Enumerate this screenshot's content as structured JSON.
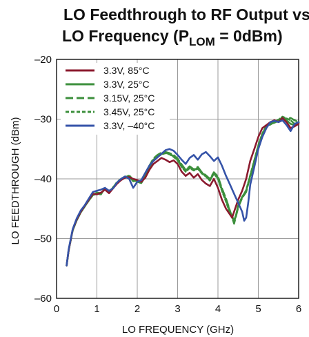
{
  "chart_data": {
    "type": "line",
    "title_line1": "LO Feedthrough to RF Output vs",
    "title_line2_prefix": "LO Frequency (P",
    "title_line2_sub": "LOM",
    "title_line2_suffix": " = 0dBm)",
    "xlabel": "LO FREQUENCY (GHz)",
    "ylabel": "LO FEEDTHROUGH (dBm)",
    "xlim": [
      0,
      6
    ],
    "ylim": [
      -60,
      -20
    ],
    "x_ticks": [
      "0",
      "1",
      "2",
      "3",
      "4",
      "5",
      "6"
    ],
    "y_ticks": [
      "–20",
      "–30",
      "–40",
      "–50",
      "–60"
    ],
    "x_tick_values": [
      0,
      1,
      2,
      3,
      4,
      5,
      6
    ],
    "y_tick_values": [
      -20,
      -30,
      -40,
      -50,
      -60
    ],
    "grid": true,
    "legend_position": "top-left",
    "series": [
      {
        "name": "3.3V, 85°C",
        "color": "#8b1a2e",
        "dash": "solid",
        "points": [
          [
            0.25,
            -54.5
          ],
          [
            0.3,
            -52
          ],
          [
            0.4,
            -48.5
          ],
          [
            0.5,
            -46.8
          ],
          [
            0.6,
            -45.5
          ],
          [
            0.7,
            -44.5
          ],
          [
            0.8,
            -43.5
          ],
          [
            0.9,
            -42.5
          ],
          [
            1.0,
            -42.6
          ],
          [
            1.1,
            -42.3
          ],
          [
            1.2,
            -41.8
          ],
          [
            1.3,
            -42.4
          ],
          [
            1.4,
            -41.6
          ],
          [
            1.5,
            -40.8
          ],
          [
            1.6,
            -40.2
          ],
          [
            1.7,
            -39.8
          ],
          [
            1.8,
            -39.7
          ],
          [
            1.9,
            -40.0
          ],
          [
            2.0,
            -40.2
          ],
          [
            2.1,
            -40.5
          ],
          [
            2.2,
            -39.8
          ],
          [
            2.3,
            -38.5
          ],
          [
            2.4,
            -37.5
          ],
          [
            2.5,
            -37.0
          ],
          [
            2.6,
            -36.5
          ],
          [
            2.7,
            -36.8
          ],
          [
            2.8,
            -37.2
          ],
          [
            2.9,
            -36.9
          ],
          [
            3.0,
            -37.5
          ],
          [
            3.1,
            -38.8
          ],
          [
            3.2,
            -39.5
          ],
          [
            3.3,
            -39.0
          ],
          [
            3.4,
            -39.8
          ],
          [
            3.5,
            -39.2
          ],
          [
            3.6,
            -40.2
          ],
          [
            3.7,
            -40.8
          ],
          [
            3.8,
            -41.2
          ],
          [
            3.9,
            -40.0
          ],
          [
            4.0,
            -41.5
          ],
          [
            4.1,
            -43.5
          ],
          [
            4.2,
            -45.0
          ],
          [
            4.3,
            -46.0
          ],
          [
            4.35,
            -46.5
          ],
          [
            4.4,
            -45.5
          ],
          [
            4.5,
            -43.5
          ],
          [
            4.6,
            -42.0
          ],
          [
            4.7,
            -40.0
          ],
          [
            4.8,
            -37.0
          ],
          [
            4.9,
            -35.0
          ],
          [
            5.0,
            -33.0
          ],
          [
            5.1,
            -31.5
          ],
          [
            5.2,
            -31.0
          ],
          [
            5.3,
            -30.5
          ],
          [
            5.4,
            -30.2
          ],
          [
            5.5,
            -30.5
          ],
          [
            5.6,
            -29.8
          ],
          [
            5.7,
            -30.5
          ],
          [
            5.8,
            -31.5
          ],
          [
            5.9,
            -31.2
          ],
          [
            6.0,
            -30.8
          ]
        ]
      },
      {
        "name": "3.3V, 25°C",
        "color": "#3c8f3c",
        "dash": "solid",
        "points": [
          [
            0.25,
            -54.5
          ],
          [
            0.3,
            -52
          ],
          [
            0.4,
            -48.6
          ],
          [
            0.5,
            -46.9
          ],
          [
            0.6,
            -45.6
          ],
          [
            0.7,
            -44.6
          ],
          [
            0.8,
            -43.6
          ],
          [
            0.9,
            -42.7
          ],
          [
            1.0,
            -42.4
          ],
          [
            1.1,
            -42.5
          ],
          [
            1.2,
            -41.6
          ],
          [
            1.3,
            -42.2
          ],
          [
            1.4,
            -41.5
          ],
          [
            1.5,
            -40.6
          ],
          [
            1.6,
            -40.1
          ],
          [
            1.7,
            -39.7
          ],
          [
            1.8,
            -39.5
          ],
          [
            1.9,
            -40.3
          ],
          [
            2.0,
            -40.4
          ],
          [
            2.1,
            -40.6
          ],
          [
            2.2,
            -39.6
          ],
          [
            2.3,
            -38.0
          ],
          [
            2.4,
            -36.8
          ],
          [
            2.5,
            -36.2
          ],
          [
            2.6,
            -35.8
          ],
          [
            2.7,
            -35.6
          ],
          [
            2.8,
            -35.8
          ],
          [
            2.9,
            -36.2
          ],
          [
            3.0,
            -36.8
          ],
          [
            3.1,
            -37.8
          ],
          [
            3.2,
            -38.6
          ],
          [
            3.3,
            -38.0
          ],
          [
            3.4,
            -38.5
          ],
          [
            3.5,
            -38.2
          ],
          [
            3.6,
            -39.0
          ],
          [
            3.7,
            -39.5
          ],
          [
            3.8,
            -40.2
          ],
          [
            3.9,
            -39.0
          ],
          [
            4.0,
            -39.8
          ],
          [
            4.1,
            -41.8
          ],
          [
            4.2,
            -43.5
          ],
          [
            4.3,
            -45.5
          ],
          [
            4.4,
            -47.0
          ],
          [
            4.45,
            -46.0
          ],
          [
            4.5,
            -44.5
          ],
          [
            4.6,
            -43.0
          ],
          [
            4.7,
            -42.0
          ],
          [
            4.8,
            -39.5
          ],
          [
            4.9,
            -37.0
          ],
          [
            5.0,
            -34.5
          ],
          [
            5.1,
            -32.5
          ],
          [
            5.2,
            -31.2
          ],
          [
            5.3,
            -30.8
          ],
          [
            5.4,
            -30.6
          ],
          [
            5.5,
            -30.3
          ],
          [
            5.6,
            -29.9
          ],
          [
            5.7,
            -30.2
          ],
          [
            5.8,
            -30.8
          ],
          [
            5.9,
            -31.0
          ],
          [
            6.0,
            -30.5
          ]
        ]
      },
      {
        "name": "3.15V, 25°C",
        "color": "#3c8f3c",
        "dash": "long",
        "points": [
          [
            0.25,
            -54.5
          ],
          [
            0.3,
            -52
          ],
          [
            0.4,
            -48.6
          ],
          [
            0.5,
            -46.9
          ],
          [
            0.6,
            -45.6
          ],
          [
            0.7,
            -44.6
          ],
          [
            0.8,
            -43.6
          ],
          [
            0.9,
            -42.7
          ],
          [
            1.0,
            -42.3
          ],
          [
            1.1,
            -42.4
          ],
          [
            1.2,
            -41.7
          ],
          [
            1.3,
            -42.1
          ],
          [
            1.4,
            -41.5
          ],
          [
            1.5,
            -40.5
          ],
          [
            1.6,
            -40.0
          ],
          [
            1.7,
            -39.6
          ],
          [
            1.8,
            -39.6
          ],
          [
            1.9,
            -40.4
          ],
          [
            2.0,
            -40.5
          ],
          [
            2.1,
            -40.7
          ],
          [
            2.2,
            -39.5
          ],
          [
            2.3,
            -37.8
          ],
          [
            2.4,
            -36.6
          ],
          [
            2.5,
            -36.0
          ],
          [
            2.6,
            -35.6
          ],
          [
            2.7,
            -35.5
          ],
          [
            2.8,
            -35.7
          ],
          [
            2.9,
            -36.0
          ],
          [
            3.0,
            -36.6
          ],
          [
            3.1,
            -37.6
          ],
          [
            3.2,
            -38.5
          ],
          [
            3.3,
            -37.9
          ],
          [
            3.4,
            -38.4
          ],
          [
            3.5,
            -38.0
          ],
          [
            3.6,
            -38.9
          ],
          [
            3.7,
            -39.4
          ],
          [
            3.8,
            -40.0
          ],
          [
            3.9,
            -38.9
          ],
          [
            4.0,
            -39.6
          ],
          [
            4.1,
            -41.6
          ],
          [
            4.2,
            -43.3
          ],
          [
            4.3,
            -45.4
          ],
          [
            4.4,
            -47.5
          ],
          [
            4.45,
            -46.2
          ],
          [
            4.5,
            -44.8
          ],
          [
            4.6,
            -43.2
          ],
          [
            4.7,
            -42.2
          ],
          [
            4.8,
            -39.6
          ],
          [
            4.9,
            -37.2
          ],
          [
            5.0,
            -34.6
          ],
          [
            5.1,
            -32.6
          ],
          [
            5.2,
            -31.3
          ],
          [
            5.3,
            -30.9
          ],
          [
            5.4,
            -30.5
          ],
          [
            5.5,
            -30.2
          ],
          [
            5.6,
            -29.8
          ],
          [
            5.7,
            -30.0
          ],
          [
            5.8,
            -29.8
          ],
          [
            5.9,
            -30.2
          ],
          [
            6.0,
            -30.5
          ]
        ]
      },
      {
        "name": "3.45V, 25°C",
        "color": "#3c8f3c",
        "dash": "short",
        "points": [
          [
            0.25,
            -54.5
          ],
          [
            0.3,
            -52
          ],
          [
            0.4,
            -48.6
          ],
          [
            0.5,
            -46.9
          ],
          [
            0.6,
            -45.6
          ],
          [
            0.7,
            -44.6
          ],
          [
            0.8,
            -43.6
          ],
          [
            0.9,
            -42.7
          ],
          [
            1.0,
            -42.5
          ],
          [
            1.1,
            -42.6
          ],
          [
            1.2,
            -41.5
          ],
          [
            1.3,
            -42.3
          ],
          [
            1.4,
            -41.4
          ],
          [
            1.5,
            -40.7
          ],
          [
            1.6,
            -40.1
          ],
          [
            1.7,
            -39.8
          ],
          [
            1.8,
            -39.4
          ],
          [
            1.9,
            -40.2
          ],
          [
            2.0,
            -40.3
          ],
          [
            2.1,
            -40.5
          ],
          [
            2.2,
            -39.7
          ],
          [
            2.3,
            -38.1
          ],
          [
            2.4,
            -36.9
          ],
          [
            2.5,
            -36.3
          ],
          [
            2.6,
            -35.9
          ],
          [
            2.7,
            -35.7
          ],
          [
            2.8,
            -35.9
          ],
          [
            2.9,
            -36.3
          ],
          [
            3.0,
            -36.9
          ],
          [
            3.1,
            -38.0
          ],
          [
            3.2,
            -38.8
          ],
          [
            3.3,
            -38.2
          ],
          [
            3.4,
            -38.6
          ],
          [
            3.5,
            -38.3
          ],
          [
            3.6,
            -39.1
          ],
          [
            3.7,
            -39.6
          ],
          [
            3.8,
            -40.3
          ],
          [
            3.9,
            -39.1
          ],
          [
            4.0,
            -40.0
          ],
          [
            4.1,
            -42.0
          ],
          [
            4.2,
            -43.8
          ],
          [
            4.3,
            -45.8
          ],
          [
            4.4,
            -47.2
          ],
          [
            4.45,
            -46.1
          ],
          [
            4.5,
            -44.6
          ],
          [
            4.6,
            -43.1
          ],
          [
            4.7,
            -41.9
          ],
          [
            4.8,
            -39.4
          ],
          [
            4.9,
            -36.9
          ],
          [
            5.0,
            -34.4
          ],
          [
            5.1,
            -32.4
          ],
          [
            5.2,
            -31.1
          ],
          [
            5.3,
            -30.7
          ],
          [
            5.4,
            -30.4
          ],
          [
            5.5,
            -30.1
          ],
          [
            5.6,
            -29.6
          ],
          [
            5.7,
            -29.9
          ],
          [
            5.8,
            -30.2
          ],
          [
            5.9,
            -30.8
          ],
          [
            6.0,
            -30.6
          ]
        ]
      },
      {
        "name": "3.3V, –40°C",
        "color": "#3553a8",
        "dash": "solid",
        "points": [
          [
            0.25,
            -54.5
          ],
          [
            0.3,
            -51.8
          ],
          [
            0.4,
            -48.4
          ],
          [
            0.5,
            -46.6
          ],
          [
            0.6,
            -45.3
          ],
          [
            0.7,
            -44.4
          ],
          [
            0.8,
            -43.3
          ],
          [
            0.9,
            -42.2
          ],
          [
            1.0,
            -42.0
          ],
          [
            1.1,
            -41.8
          ],
          [
            1.2,
            -41.5
          ],
          [
            1.3,
            -42.0
          ],
          [
            1.4,
            -41.6
          ],
          [
            1.5,
            -40.6
          ],
          [
            1.6,
            -40.0
          ],
          [
            1.7,
            -39.6
          ],
          [
            1.8,
            -40.0
          ],
          [
            1.9,
            -41.5
          ],
          [
            2.0,
            -40.5
          ],
          [
            2.1,
            -40.2
          ],
          [
            2.2,
            -39.0
          ],
          [
            2.3,
            -37.8
          ],
          [
            2.4,
            -37.0
          ],
          [
            2.5,
            -36.4
          ],
          [
            2.6,
            -35.8
          ],
          [
            2.7,
            -35.2
          ],
          [
            2.8,
            -35.0
          ],
          [
            2.9,
            -35.3
          ],
          [
            3.0,
            -36.0
          ],
          [
            3.1,
            -36.8
          ],
          [
            3.2,
            -37.5
          ],
          [
            3.3,
            -36.5
          ],
          [
            3.4,
            -36.0
          ],
          [
            3.5,
            -36.8
          ],
          [
            3.6,
            -35.9
          ],
          [
            3.7,
            -35.5
          ],
          [
            3.8,
            -36.2
          ],
          [
            3.9,
            -37.0
          ],
          [
            4.0,
            -36.4
          ],
          [
            4.1,
            -37.8
          ],
          [
            4.2,
            -39.5
          ],
          [
            4.3,
            -41.0
          ],
          [
            4.4,
            -42.5
          ],
          [
            4.5,
            -44.0
          ],
          [
            4.6,
            -45.5
          ],
          [
            4.65,
            -47.0
          ],
          [
            4.7,
            -46.5
          ],
          [
            4.75,
            -44.0
          ],
          [
            4.8,
            -41.0
          ],
          [
            4.9,
            -38.0
          ],
          [
            5.0,
            -35.0
          ],
          [
            5.1,
            -33.0
          ],
          [
            5.2,
            -31.5
          ],
          [
            5.3,
            -30.5
          ],
          [
            5.4,
            -30.3
          ],
          [
            5.5,
            -30.5
          ],
          [
            5.6,
            -30.2
          ],
          [
            5.7,
            -31.0
          ],
          [
            5.8,
            -32.0
          ],
          [
            5.9,
            -30.8
          ],
          [
            6.0,
            -30.5
          ]
        ]
      }
    ]
  }
}
